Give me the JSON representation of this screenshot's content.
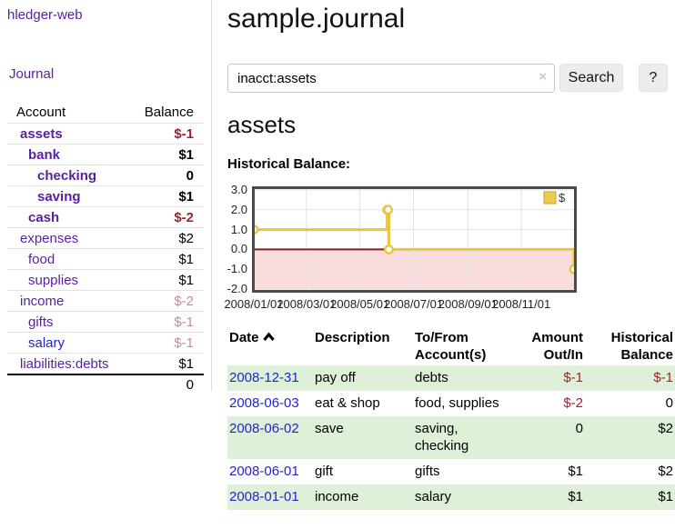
{
  "sidebar": {
    "brand": "hledger-web",
    "journal_label": "Journal",
    "accounts_table": {
      "headers": {
        "account": "Account",
        "balance": "Balance"
      },
      "rows": [
        {
          "label": "assets",
          "depth": 0,
          "bold": true,
          "balance": "$-1",
          "balance_style": "neg-strong",
          "link_style": "purple"
        },
        {
          "label": "bank",
          "depth": 1,
          "bold": true,
          "balance": "$1",
          "balance_style": "plain",
          "link_style": "purple"
        },
        {
          "label": "checking",
          "depth": 2,
          "bold": true,
          "balance": "0",
          "balance_style": "plain",
          "link_style": "purple"
        },
        {
          "label": "saving",
          "depth": 2,
          "bold": true,
          "balance": "$1",
          "balance_style": "plain",
          "link_style": "purple"
        },
        {
          "label": "cash",
          "depth": 1,
          "bold": true,
          "balance": "$-2",
          "balance_style": "neg-strong",
          "link_style": "purple"
        },
        {
          "label": "expenses",
          "depth": 0,
          "bold": false,
          "balance": "$2",
          "balance_style": "plain",
          "link_style": "purple"
        },
        {
          "label": "food",
          "depth": 1,
          "bold": false,
          "balance": "$1",
          "balance_style": "plain",
          "link_style": "purple"
        },
        {
          "label": "supplies",
          "depth": 1,
          "bold": false,
          "balance": "$1",
          "balance_style": "plain",
          "link_style": "purple"
        },
        {
          "label": "income",
          "depth": 0,
          "bold": false,
          "balance": "$-2",
          "balance_style": "neg-soft",
          "link_style": "purple"
        },
        {
          "label": "gifts",
          "depth": 1,
          "bold": false,
          "balance": "$-1",
          "balance_style": "neg-soft",
          "link_style": "purple"
        },
        {
          "label": "salary",
          "depth": 1,
          "bold": false,
          "balance": "$-1",
          "balance_style": "neg-soft",
          "link_style": "blue"
        },
        {
          "label": "liabilities:debts",
          "depth": 0,
          "bold": false,
          "balance": "$1",
          "balance_style": "plain",
          "link_style": "purple"
        }
      ],
      "total": "0"
    }
  },
  "main": {
    "title": "sample.journal",
    "search": {
      "query": "inacct:assets",
      "clear_icon": "×",
      "button_label": "Search",
      "help_label": "?"
    },
    "account_heading": "assets",
    "chart_heading": "Historical Balance:",
    "register_table": {
      "headers": {
        "date": "Date",
        "description": "Description",
        "accounts": "To/From Account(s)",
        "amount": "Amount Out/In",
        "balance": "Historical Balance"
      },
      "rows": [
        {
          "date": "2008-12-31",
          "description": "pay off",
          "accounts": "debts",
          "amount": "$-1",
          "amount_style": "neg",
          "balance": "$-1",
          "balance_style": "neg"
        },
        {
          "date": "2008-06-03",
          "description": "eat & shop",
          "accounts": "food, supplies",
          "amount": "$-2",
          "amount_style": "neg",
          "balance": "0",
          "balance_style": "plain"
        },
        {
          "date": "2008-06-02",
          "description": "save",
          "accounts": "saving, checking",
          "amount": "0",
          "amount_style": "plain",
          "balance": "$2",
          "balance_style": "plain"
        },
        {
          "date": "2008-06-01",
          "description": "gift",
          "accounts": "gifts",
          "amount": "$1",
          "amount_style": "plain",
          "balance": "$2",
          "balance_style": "plain"
        },
        {
          "date": "2008-01-01",
          "description": "income",
          "accounts": "salary",
          "amount": "$1",
          "amount_style": "plain",
          "balance": "$1",
          "balance_style": "plain"
        }
      ]
    }
  },
  "chart_data": {
    "type": "line",
    "step": true,
    "title": "Historical Balance:",
    "series": [
      {
        "name": "$",
        "color": "#e8c63f",
        "points": [
          [
            "2008-01-01",
            1
          ],
          [
            "2008-06-01",
            2
          ],
          [
            "2008-06-02",
            2
          ],
          [
            "2008-06-03",
            0
          ],
          [
            "2008-12-31",
            -1
          ]
        ]
      }
    ],
    "x_range": [
      "2008-01-01",
      "2009-01-01"
    ],
    "ylim": [
      -2,
      3
    ],
    "yticks": [
      3.0,
      2.0,
      1.0,
      0.0,
      -1.0,
      -2.0
    ],
    "xticks": [
      {
        "label": "2008/01/01",
        "date": "2008-01-01"
      },
      {
        "label": "2008/03/01",
        "date": "2008-03-01"
      },
      {
        "label": "2008/05/01",
        "date": "2008-05-01"
      },
      {
        "label": "2008/07/01",
        "date": "2008-07-01"
      },
      {
        "label": "2008/09/01",
        "date": "2008-09-01"
      },
      {
        "label": "2008/11/01",
        "date": "2008-11-01"
      }
    ],
    "grid": true,
    "legend": {
      "label": "$",
      "position": "top-right"
    },
    "negative_region_fill": "#fbdcdc",
    "zero_line_color": "#8b1c1c",
    "plot_border_color": "#4a4a4a",
    "gridline_color": "#e3e3e3"
  },
  "colors": {
    "link_purple": "#5a1f9e",
    "link_blue": "#2323cf",
    "negative_strong": "#9e222d",
    "negative_soft": "#c98b94",
    "row_stripe_green": "#dff0d8",
    "series_gold": "#e8c63f"
  }
}
